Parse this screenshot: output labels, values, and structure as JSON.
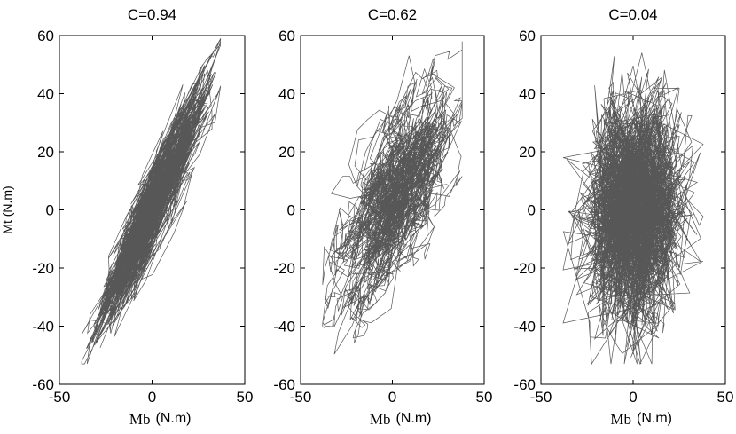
{
  "chart_data": [
    {
      "type": "line",
      "title": "C=0.94",
      "xlabel_main": "Mb",
      "xlabel_unit": "(N.m)",
      "ylabel": "Mt (N.m)",
      "xlim": [
        -50,
        50
      ],
      "ylim": [
        -60,
        60
      ],
      "xticks": [
        "-50",
        "0",
        "50"
      ],
      "yticks": [
        "60",
        "40",
        "20",
        "0",
        "-20",
        "-40",
        "-60"
      ],
      "grid": false,
      "color": "#3a3a3a",
      "correlation": 0.94,
      "x_range": [
        -38,
        37
      ],
      "y_range": [
        -53,
        59
      ]
    },
    {
      "type": "line",
      "title": "C=0.62",
      "xlabel_main": "Mb",
      "xlabel_unit": "(N.m)",
      "ylabel": "",
      "xlim": [
        -50,
        50
      ],
      "ylim": [
        -60,
        60
      ],
      "xticks": [
        "-50",
        "0",
        "50"
      ],
      "yticks": [
        "60",
        "40",
        "20",
        "0",
        "-20",
        "-40",
        "-60"
      ],
      "grid": false,
      "color": "#3a3a3a",
      "correlation": 0.62,
      "x_range": [
        -38,
        38
      ],
      "y_range": [
        -55,
        58
      ]
    },
    {
      "type": "line",
      "title": "C=0.04",
      "xlabel_main": "Mb",
      "xlabel_unit": "(N.m)",
      "ylabel": "",
      "xlim": [
        -50,
        50
      ],
      "ylim": [
        -60,
        60
      ],
      "xticks": [
        "-50",
        "0",
        "50"
      ],
      "yticks": [
        "60",
        "40",
        "20",
        "0",
        "-20",
        "-40",
        "-60"
      ],
      "grid": false,
      "color": "#3a3a3a",
      "correlation": 0.04,
      "x_range": [
        -38,
        38
      ],
      "y_range": [
        -53,
        60
      ]
    }
  ]
}
